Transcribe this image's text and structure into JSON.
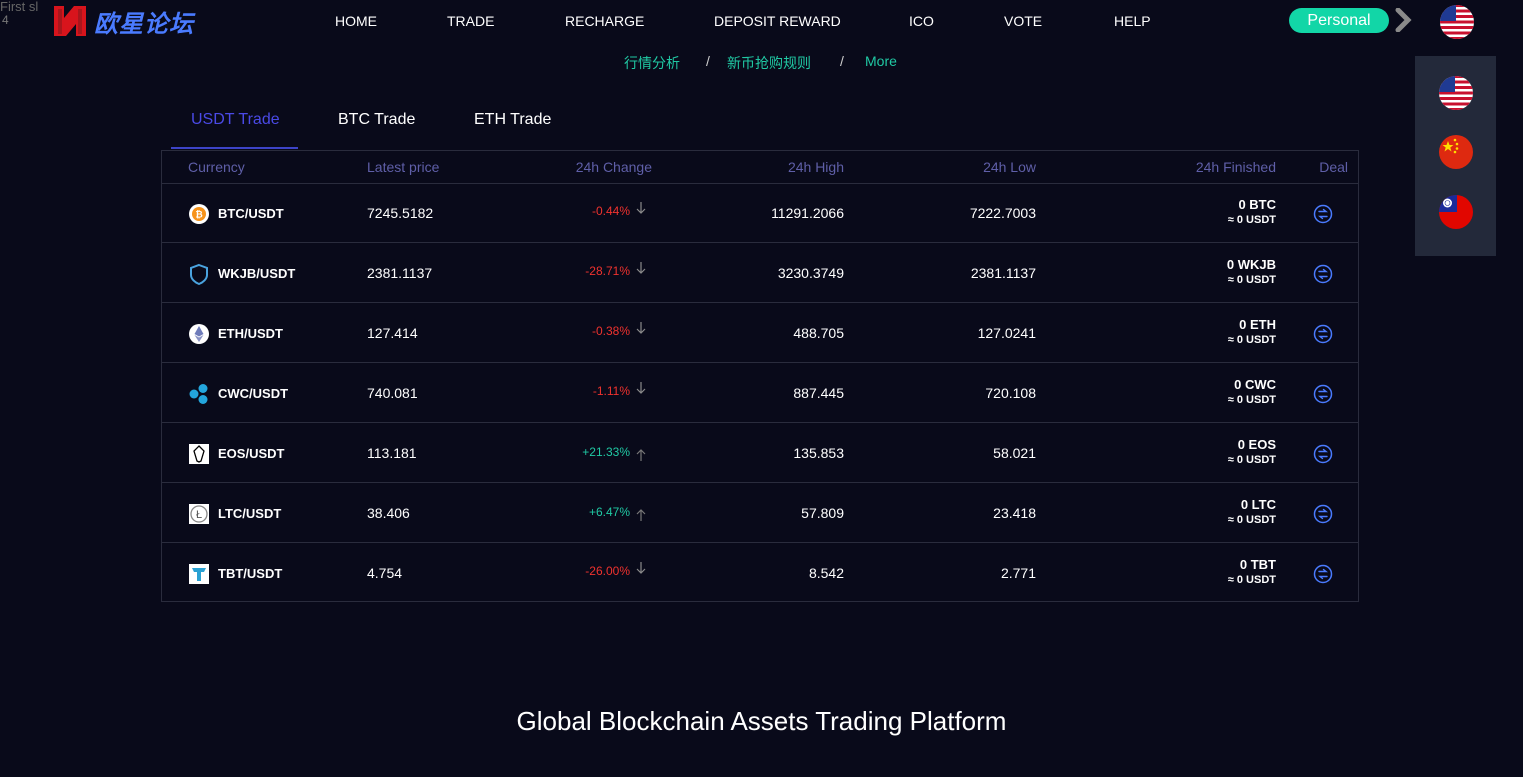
{
  "broken_image": {
    "alt": "First sl",
    "line2": "4"
  },
  "brand": {
    "name": "欧星论坛"
  },
  "nav": {
    "items": [
      {
        "label": "HOME",
        "active": true
      },
      {
        "label": "TRADE",
        "active": false
      },
      {
        "label": "RECHARGE",
        "active": false
      },
      {
        "label": "DEPOSIT REWARD",
        "active": false
      },
      {
        "label": "ICO",
        "active": false
      },
      {
        "label": "VOTE",
        "active": false
      },
      {
        "label": "HELP",
        "active": false
      }
    ],
    "personal_label": "Personal"
  },
  "subnav": {
    "links": [
      "行情分析",
      "新币抢购规则",
      "More"
    ],
    "separator": "/"
  },
  "tabs": [
    {
      "label": "USDT Trade",
      "active": true
    },
    {
      "label": "BTC Trade",
      "active": false
    },
    {
      "label": "ETH Trade",
      "active": false
    }
  ],
  "table": {
    "headers": [
      "Currency",
      "Latest price",
      "24h Change",
      "24h High",
      "24h Low",
      "24h Finished",
      "Deal"
    ],
    "rows": [
      {
        "icon": "btc-icon",
        "pair": "BTC/USDT",
        "price": "7245.5182",
        "change": "-0.44%",
        "dir": "down",
        "high": "11291.2066",
        "low": "7222.7003",
        "finished": "0 BTC",
        "finished_usdt": "≈ 0 USDT"
      },
      {
        "icon": "wkjb-icon",
        "pair": "WKJB/USDT",
        "price": "2381.1137",
        "change": "-28.71%",
        "dir": "down",
        "high": "3230.3749",
        "low": "2381.1137",
        "finished": "0 WKJB",
        "finished_usdt": "≈ 0 USDT"
      },
      {
        "icon": "eth-icon",
        "pair": "ETH/USDT",
        "price": "127.414",
        "change": "-0.38%",
        "dir": "down",
        "high": "488.705",
        "low": "127.0241",
        "finished": "0 ETH",
        "finished_usdt": "≈ 0 USDT"
      },
      {
        "icon": "cwc-icon",
        "pair": "CWC/USDT",
        "price": "740.081",
        "change": "-1.11%",
        "dir": "down",
        "high": "887.445",
        "low": "720.108",
        "finished": "0 CWC",
        "finished_usdt": "≈ 0 USDT"
      },
      {
        "icon": "eos-icon",
        "pair": "EOS/USDT",
        "price": "113.181",
        "change": "+21.33%",
        "dir": "up",
        "high": "135.853",
        "low": "58.021",
        "finished": "0 EOS",
        "finished_usdt": "≈ 0 USDT"
      },
      {
        "icon": "ltc-icon",
        "pair": "LTC/USDT",
        "price": "38.406",
        "change": "+6.47%",
        "dir": "up",
        "high": "57.809",
        "low": "23.418",
        "finished": "0 LTC",
        "finished_usdt": "≈ 0 USDT"
      },
      {
        "icon": "tbt-icon",
        "pair": "TBT/USDT",
        "price": "4.754",
        "change": "-26.00%",
        "dir": "down",
        "high": "8.542",
        "low": "2.771",
        "finished": "0 TBT",
        "finished_usdt": "≈ 0 USDT"
      }
    ]
  },
  "languages": [
    "us-flag-icon",
    "china-flag-icon",
    "taiwan-flag-icon"
  ],
  "headline": "Global Blockchain Assets Trading Platform",
  "colors": {
    "background": "#090a1a",
    "accent": "#20c9a4",
    "down": "#f0322e",
    "up": "#20c9a4",
    "tab_active": "#4a4ae6",
    "deal_icon": "#4a7bff"
  }
}
